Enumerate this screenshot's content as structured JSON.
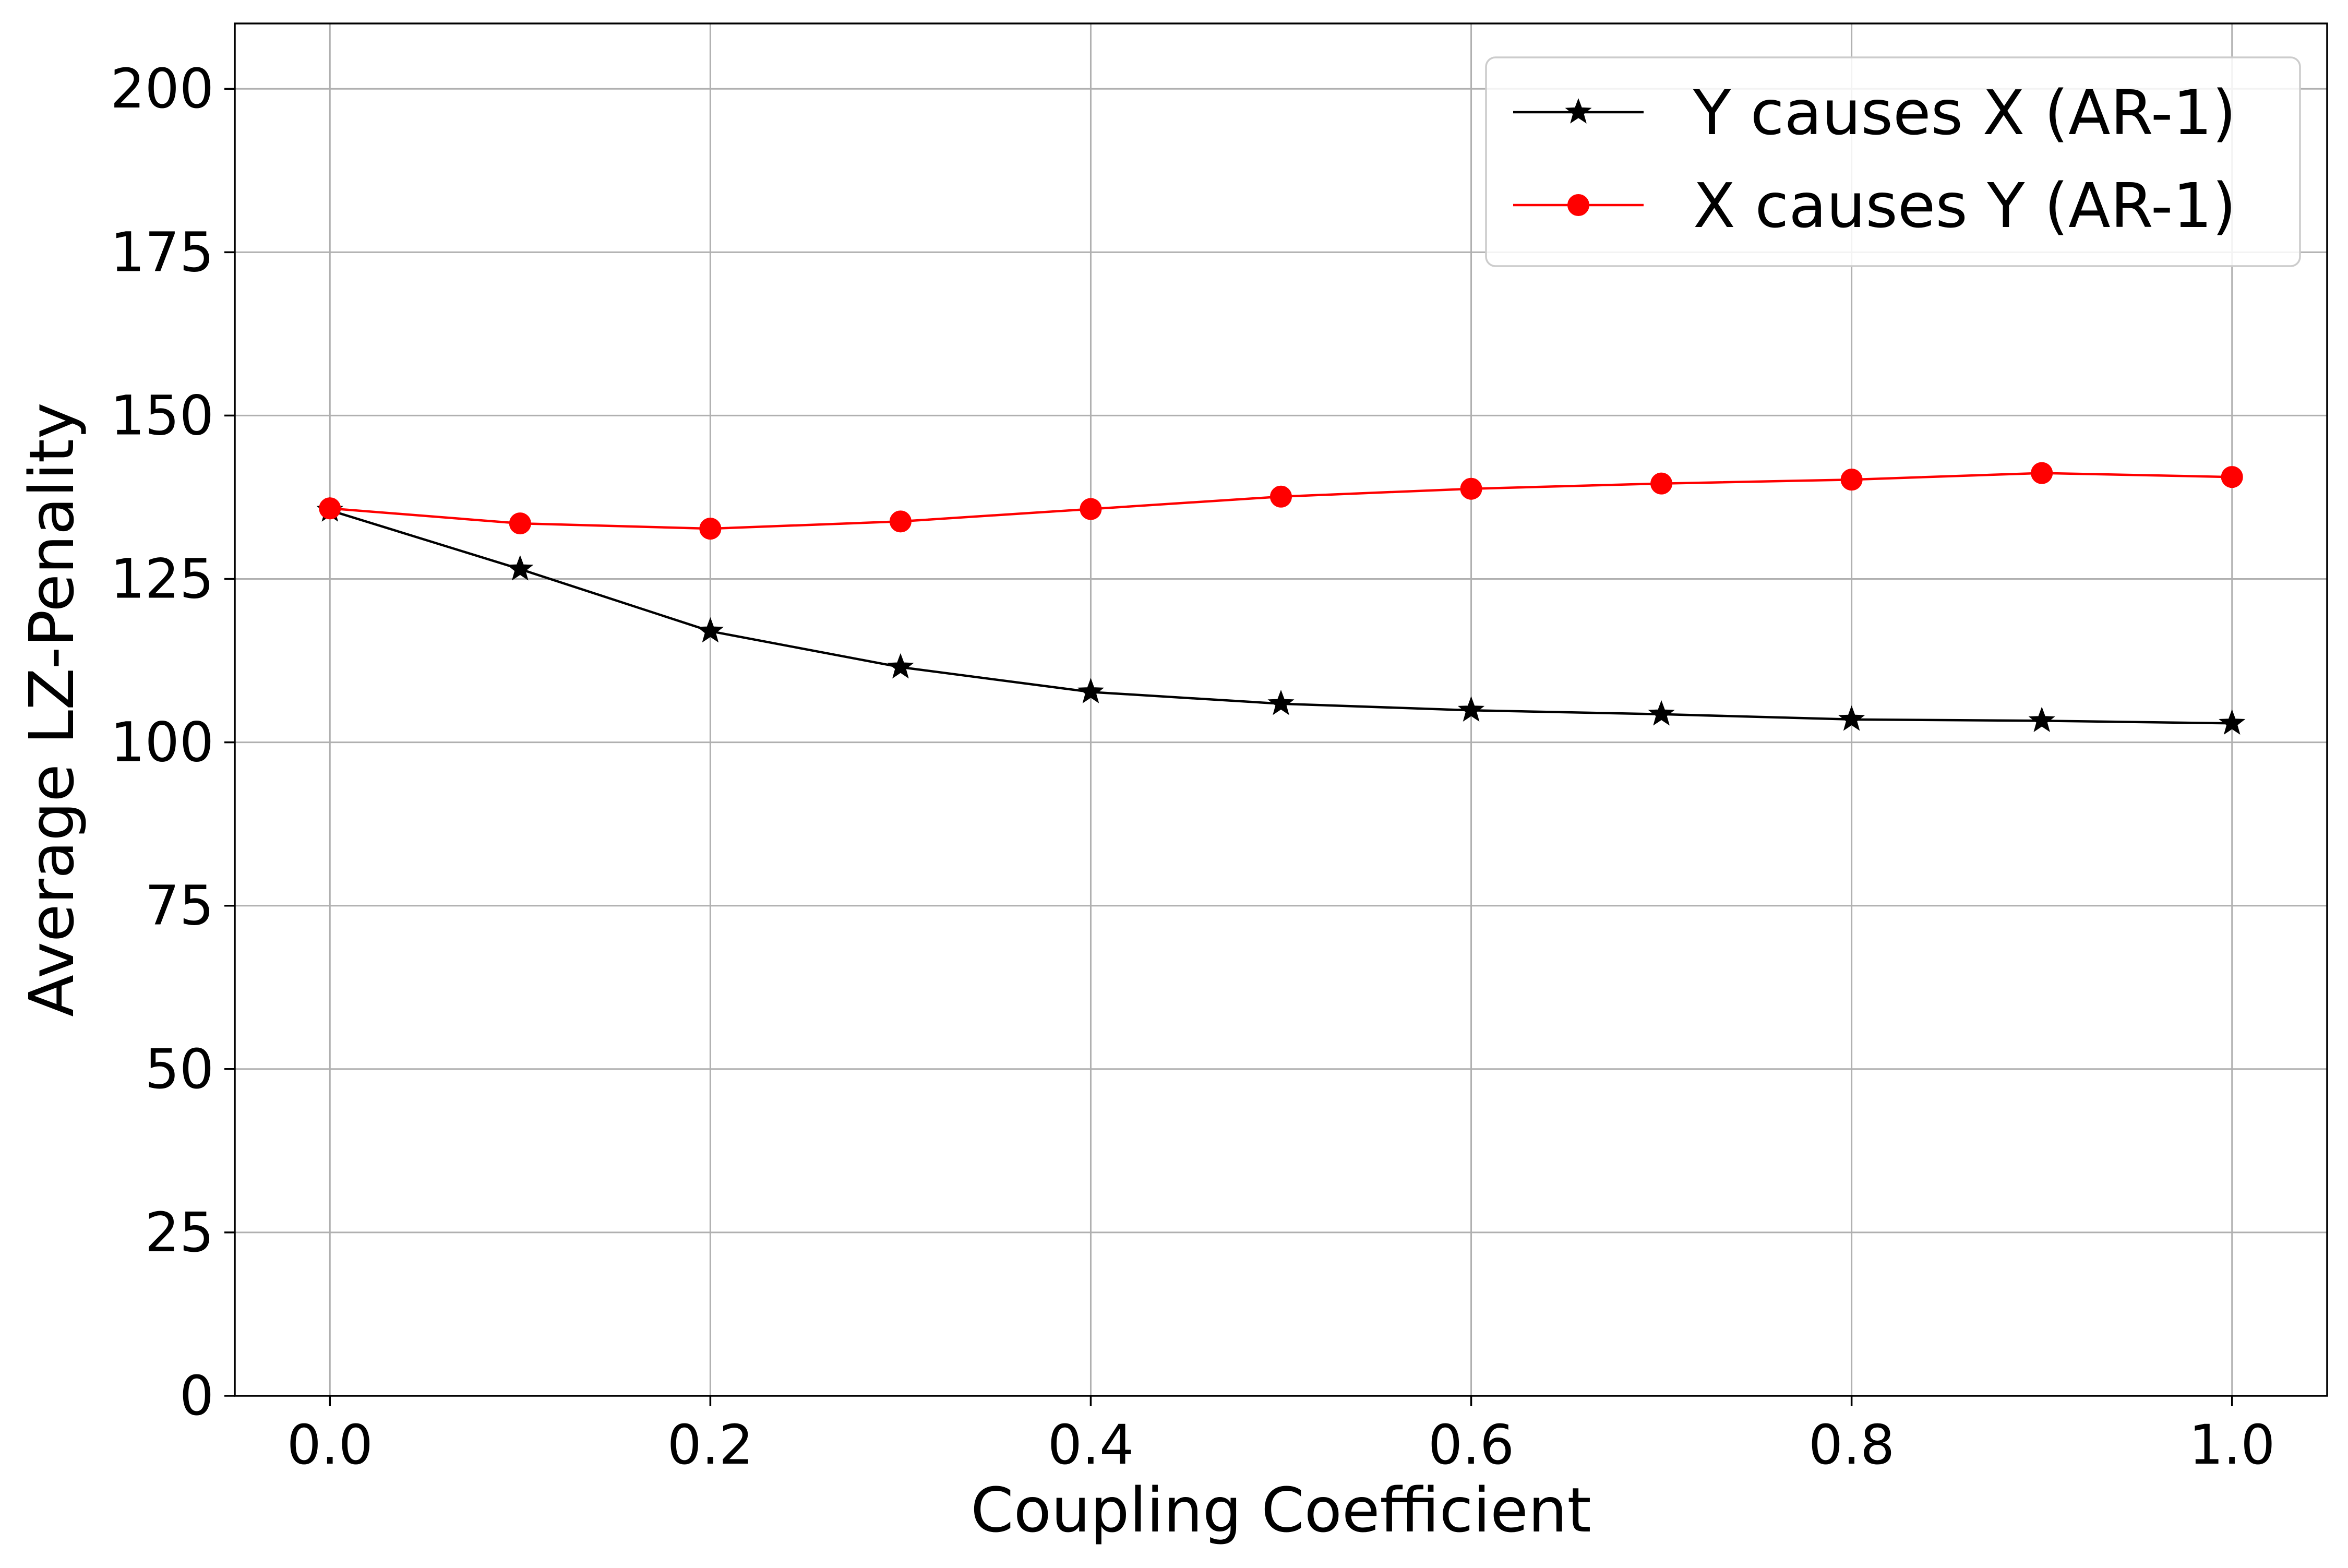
{
  "chart_data": {
    "type": "line",
    "title": "",
    "xlabel": "Coupling Coefficient",
    "ylabel": "Average LZ-Penality",
    "xlim": [
      -0.05,
      1.05
    ],
    "ylim": [
      0,
      210
    ],
    "x_ticks": [
      0.0,
      0.2,
      0.4,
      0.6,
      0.8,
      1.0
    ],
    "x_tick_labels": [
      "0.0",
      "0.2",
      "0.4",
      "0.6",
      "0.8",
      "1.0"
    ],
    "y_ticks": [
      0,
      25,
      50,
      75,
      100,
      125,
      150,
      175,
      200
    ],
    "y_tick_labels": [
      "0",
      "25",
      "50",
      "75",
      "100",
      "125",
      "150",
      "175",
      "200"
    ],
    "grid": true,
    "legend_position": "top-right",
    "x": [
      0.0,
      0.1,
      0.2,
      0.3,
      0.4,
      0.5,
      0.6,
      0.7,
      0.8,
      0.9,
      1.0
    ],
    "series": [
      {
        "name": "Y causes X (AR-1)",
        "color": "#000000",
        "marker": "star",
        "values": [
          135.5,
          126.5,
          117.0,
          111.5,
          107.7,
          105.9,
          104.9,
          104.3,
          103.5,
          103.3,
          102.9
        ]
      },
      {
        "name": "X causes Y (AR-1)",
        "color": "#ff0000",
        "marker": "circle",
        "values": [
          135.8,
          133.5,
          132.7,
          133.8,
          135.7,
          137.6,
          138.8,
          139.6,
          140.2,
          141.2,
          140.6
        ]
      }
    ]
  }
}
